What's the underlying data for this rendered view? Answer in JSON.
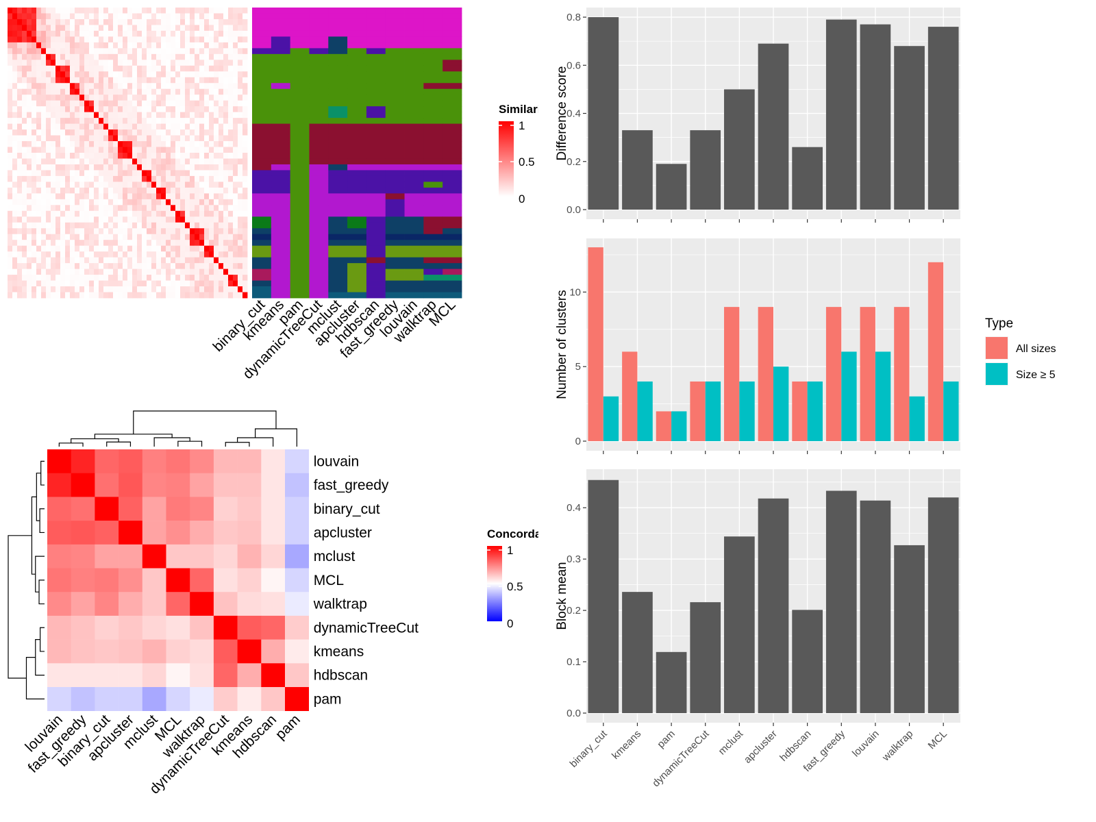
{
  "chart_data": [
    {
      "type": "heatmap",
      "panel": "similarity-heatmap-with-cluster-assignments",
      "legend_title": "Similarity",
      "legend_ticks": [
        "1",
        "0.5",
        "0"
      ],
      "legend_colors": [
        "#ffffff",
        "#ff0000"
      ],
      "diagonal_blocks": [
        6,
        1,
        1,
        2,
        3,
        2,
        1,
        2,
        1,
        1,
        1,
        2,
        3,
        1,
        1,
        2,
        1,
        2,
        1,
        1,
        2,
        1,
        3,
        2,
        1,
        1,
        1,
        2,
        1,
        1
      ],
      "annotation_columns": [
        "binary_cut",
        "kmeans",
        "pam",
        "dynamicTreeCut",
        "mclust",
        "apcluster",
        "hdbscan",
        "fast_greedy",
        "louvain",
        "walktrap",
        "MCL"
      ],
      "annotation_palette": {
        "A": "#dd15c8",
        "B": "#4a920a",
        "C": "#8b1030",
        "D": "#4b12a6",
        "E": "#b218cf",
        "F": "#0e4066",
        "G": "#0b7a18",
        "H": "#6a9a12",
        "I": "#0a9168",
        "J": "#0a2766",
        "K": "#a91a5c",
        "L": "#0d5a7a"
      },
      "annotation_grid": [
        "AAAAAAAAAAA",
        "AAAAAAAAAAA",
        "AAAAAAAAAAA",
        "AAAAAAAAAAA",
        "AAAAAAAAAAA",
        "ADAAFAAAAAA",
        "ADAAFAAAAAA",
        "DDBDFBDBBBB",
        "BBBBBBBBBBB",
        "BBBBBBBBBBC",
        "BBBBBBBBBBC",
        "BBBBBBBBBBB",
        "BBBBBBBBBBB",
        "BEBBBBBBBCC",
        "BBBBBBBBBBB",
        "BBBBBBBBBBB",
        "BBBBBBBBBBB",
        "BBBBIBDBBBB",
        "BBBBIBDBBBB",
        "BBBBBBBBBBB",
        "CCBCCCCCCCC",
        "CCBCCCCCCCC",
        "CCBCCCCCCCC",
        "CCBCCCCCCCC",
        "CCBCCCCCCCC",
        "CCBCCCCCCCC",
        "CCBCCCCCCCC",
        "CEBEFEEEEEE",
        "DDBEDDDDDDD",
        "DDBEDDDDDDD",
        "DDBEDDDDDBD",
        "DDBEDDDDDDD",
        "EEBEEEECEEE",
        "EEBEEEEDEEE",
        "EEBEEEEDEEE",
        "EEBEEEEDEEE",
        "GEBEFGDFFCC",
        "GEBEFGDFFCC",
        "FEBEFFDFFCF",
        "JEBEJJDJJJJ",
        "FEBEFFDFFFF",
        "HEBEHHDHHHH",
        "HEBEHHDHHHH",
        "FEBEFFCFFCC",
        "FEBEFHDFFFF",
        "KEBEFHDHHDK",
        "KEBEFHDHHII",
        "FEBEFHDFFFF",
        "LEBEFHDFFFF",
        "LEBELLDLLLL"
      ]
    },
    {
      "type": "heatmap",
      "panel": "concordance-heatmap",
      "legend_title": "Concordance",
      "legend_ticks": [
        "1",
        "0.5",
        "0"
      ],
      "legend_colors": [
        "#0000ff",
        "#ffffff",
        "#ff0000"
      ],
      "rows": [
        "louvain",
        "fast_greedy",
        "binary_cut",
        "apcluster",
        "mclust",
        "MCL",
        "walktrap",
        "dynamicTreeCut",
        "kmeans",
        "hdbscan",
        "pam"
      ],
      "columns": [
        "louvain",
        "fast_greedy",
        "binary_cut",
        "apcluster",
        "mclust",
        "MCL",
        "walktrap",
        "dynamicTreeCut",
        "kmeans",
        "hdbscan",
        "pam"
      ],
      "values": [
        [
          1.0,
          0.93,
          0.8,
          0.82,
          0.75,
          0.77,
          0.73,
          0.64,
          0.64,
          0.55,
          0.42
        ],
        [
          0.93,
          1.0,
          0.78,
          0.83,
          0.74,
          0.75,
          0.68,
          0.62,
          0.62,
          0.55,
          0.38
        ],
        [
          0.8,
          0.78,
          1.0,
          0.81,
          0.68,
          0.76,
          0.74,
          0.59,
          0.61,
          0.55,
          0.41
        ],
        [
          0.82,
          0.83,
          0.81,
          1.0,
          0.68,
          0.72,
          0.66,
          0.61,
          0.62,
          0.55,
          0.41
        ],
        [
          0.75,
          0.74,
          0.68,
          0.68,
          1.0,
          0.61,
          0.61,
          0.58,
          0.65,
          0.58,
          0.33
        ],
        [
          0.77,
          0.75,
          0.76,
          0.72,
          0.61,
          1.0,
          0.8,
          0.56,
          0.59,
          0.52,
          0.42
        ],
        [
          0.73,
          0.68,
          0.74,
          0.66,
          0.61,
          0.8,
          1.0,
          0.62,
          0.57,
          0.56,
          0.46
        ],
        [
          0.64,
          0.62,
          0.59,
          0.61,
          0.58,
          0.56,
          0.62,
          1.0,
          0.82,
          0.8,
          0.6
        ],
        [
          0.64,
          0.62,
          0.61,
          0.62,
          0.65,
          0.59,
          0.57,
          0.82,
          1.0,
          0.66,
          0.54
        ],
        [
          0.55,
          0.55,
          0.55,
          0.55,
          0.58,
          0.52,
          0.56,
          0.8,
          0.66,
          1.0,
          0.61
        ],
        [
          0.42,
          0.38,
          0.41,
          0.41,
          0.33,
          0.42,
          0.46,
          0.6,
          0.54,
          0.61,
          1.0
        ]
      ]
    },
    {
      "type": "bar",
      "panel": "difference-score",
      "categories": [
        "binary_cut",
        "kmeans",
        "pam",
        "dynamicTreeCut",
        "mclust",
        "apcluster",
        "hdbscan",
        "fast_greedy",
        "louvain",
        "walktrap",
        "MCL"
      ],
      "values": [
        0.8,
        0.33,
        0.19,
        0.33,
        0.5,
        0.69,
        0.26,
        0.79,
        0.77,
        0.68,
        0.76
      ],
      "ylabel": "Difference score",
      "ylim": [
        0,
        0.84
      ],
      "yticks": [
        "0.0",
        "0.2",
        "0.4",
        "0.6",
        "0.8"
      ],
      "bar_color": "#595959",
      "panel_background": "#ebebeb"
    },
    {
      "type": "bar",
      "panel": "number-of-clusters",
      "categories": [
        "binary_cut",
        "kmeans",
        "pam",
        "dynamicTreeCut",
        "mclust",
        "apcluster",
        "hdbscan",
        "fast_greedy",
        "louvain",
        "walktrap",
        "MCL"
      ],
      "series": [
        {
          "name": "All sizes",
          "values": [
            13,
            6,
            2,
            4,
            9,
            9,
            4,
            9,
            9,
            9,
            12
          ],
          "color": "#f8766d"
        },
        {
          "name": "Size ≥ 5",
          "values": [
            3,
            4,
            2,
            4,
            4,
            5,
            4,
            6,
            6,
            3,
            4
          ],
          "color": "#00bfc4"
        }
      ],
      "ylabel": "Number of clusters",
      "ylim": [
        0,
        13.6
      ],
      "yticks": [
        "0",
        "5",
        "10"
      ],
      "legend_title": "Type",
      "legend_position": "right",
      "panel_background": "#ebebeb"
    },
    {
      "type": "bar",
      "panel": "block-mean",
      "categories": [
        "binary_cut",
        "kmeans",
        "pam",
        "dynamicTreeCut",
        "mclust",
        "apcluster",
        "hdbscan",
        "fast_greedy",
        "louvain",
        "walktrap",
        "MCL"
      ],
      "values": [
        0.454,
        0.236,
        0.119,
        0.216,
        0.344,
        0.418,
        0.201,
        0.433,
        0.414,
        0.327,
        0.42
      ],
      "ylabel": "Block mean",
      "ylim": [
        0,
        0.475
      ],
      "yticks": [
        "0.0",
        "0.1",
        "0.2",
        "0.3",
        "0.4"
      ],
      "bar_color": "#595959",
      "panel_background": "#ebebeb"
    }
  ]
}
